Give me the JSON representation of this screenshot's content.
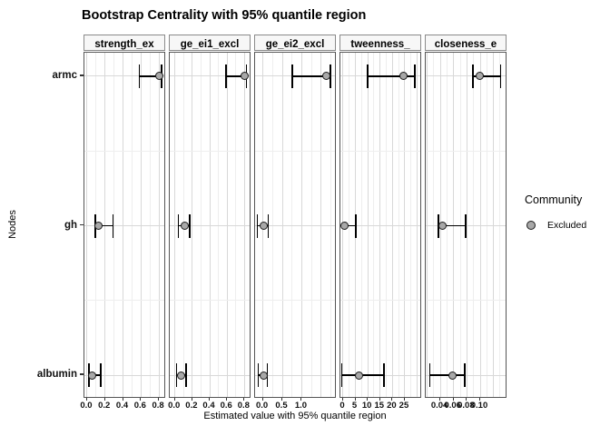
{
  "title": "Bootstrap Centrality with 95% quantile region",
  "axes": {
    "x_title": "Estimated value with 95% quantile region",
    "y_title": "Nodes"
  },
  "legend": {
    "title": "Community",
    "items": [
      {
        "label": "Excluded",
        "marker": "circle-icon"
      }
    ]
  },
  "colors": {
    "point_fill": "#a8a8a8",
    "point_stroke": "#1a1a1a",
    "errorbar": "#000000",
    "grid_major": "#d8d8d8",
    "grid_minor": "#eeeeee",
    "panel_border": "#555555",
    "background": "#ffffff"
  },
  "chart_data": {
    "type": "scatter",
    "subtype": "pointrange-errorbar-facets",
    "title": "Bootstrap Centrality with 95% quantile region",
    "xlabel": "Estimated value with 95% quantile region",
    "ylabel": "Nodes",
    "y_categories": [
      "armc",
      "gh",
      "albumin"
    ],
    "legend": {
      "title": "Community",
      "entries": [
        "Excluded"
      ],
      "position": "right"
    },
    "grid": true,
    "facets": [
      {
        "label": "strength_ex",
        "xlim": [
          -0.03,
          0.88
        ],
        "ticks": [
          0.0,
          0.2,
          0.4,
          0.6,
          0.8
        ],
        "tick_labels": [
          "0.0",
          "0.2",
          "0.4",
          "0.6",
          "0.8"
        ],
        "series": [
          {
            "node": "armc",
            "estimate": 0.8,
            "lower": 0.58,
            "upper": 0.83
          },
          {
            "node": "gh",
            "estimate": 0.13,
            "lower": 0.09,
            "upper": 0.29
          },
          {
            "node": "albumin",
            "estimate": 0.06,
            "lower": 0.02,
            "upper": 0.15
          }
        ]
      },
      {
        "label": "ge_ei1_excl",
        "xlim": [
          -0.06,
          0.88
        ],
        "ticks": [
          0.0,
          0.2,
          0.4,
          0.6,
          0.8
        ],
        "tick_labels": [
          "0.0",
          "0.2",
          "0.4",
          "0.6",
          "0.8"
        ],
        "series": [
          {
            "node": "armc",
            "estimate": 0.8,
            "lower": 0.59,
            "upper": 0.82
          },
          {
            "node": "gh",
            "estimate": 0.11,
            "lower": 0.04,
            "upper": 0.17
          },
          {
            "node": "albumin",
            "estimate": 0.07,
            "lower": 0.02,
            "upper": 0.13
          }
        ]
      },
      {
        "label": "ge_ei2_excl",
        "xlim": [
          -0.2,
          1.9
        ],
        "ticks": [
          0.0,
          0.5,
          1.0
        ],
        "tick_labels": [
          "0.0",
          "0.5",
          "1.0"
        ],
        "series": [
          {
            "node": "armc",
            "estimate": 1.64,
            "lower": 0.76,
            "upper": 1.74
          },
          {
            "node": "gh",
            "estimate": 0.02,
            "lower": -0.14,
            "upper": 0.14
          },
          {
            "node": "albumin",
            "estimate": 0.02,
            "lower": -0.12,
            "upper": 0.12
          }
        ]
      },
      {
        "label": "tweenness_",
        "xlim": [
          -1.1,
          32
        ],
        "ticks": [
          0,
          5,
          10,
          15,
          20,
          25
        ],
        "tick_labels": [
          "0",
          "5",
          "10",
          "15",
          "20",
          "25"
        ],
        "series": [
          {
            "node": "armc",
            "estimate": 24.6,
            "lower": 9.9,
            "upper": 29.0
          },
          {
            "node": "gh",
            "estimate": 0.4,
            "lower": -1.4,
            "upper": 5.1
          },
          {
            "node": "albumin",
            "estimate": 6.6,
            "lower": -0.6,
            "upper": 16.5
          }
        ]
      },
      {
        "label": "closeness_e",
        "xlim": [
          0.018,
          0.141
        ],
        "ticks": [
          0.04,
          0.06,
          0.08,
          0.1
        ],
        "tick_labels": [
          "0.04",
          "0.06",
          "0.08",
          "0.10"
        ],
        "series": [
          {
            "node": "armc",
            "estimate": 0.099,
            "lower": 0.089,
            "upper": 0.131
          },
          {
            "node": "gh",
            "estimate": 0.043,
            "lower": 0.037,
            "upper": 0.078
          },
          {
            "node": "albumin",
            "estimate": 0.058,
            "lower": 0.024,
            "upper": 0.077
          }
        ]
      }
    ]
  }
}
